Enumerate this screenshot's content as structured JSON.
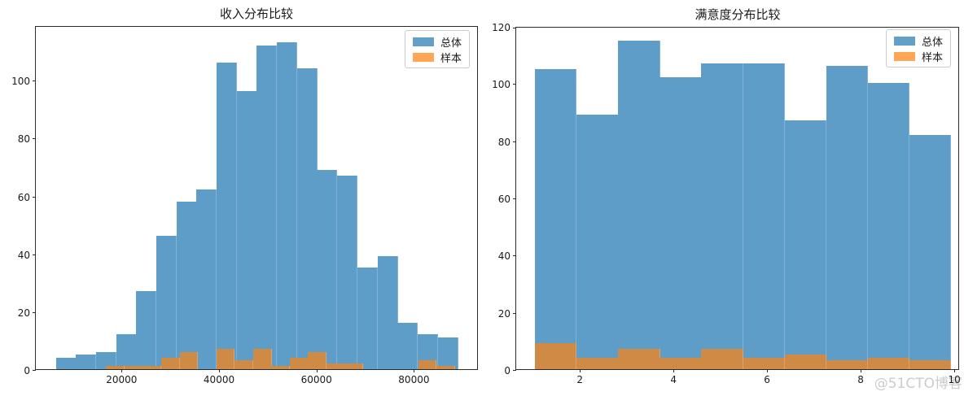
{
  "watermark": {
    "text": "@51CTO博客"
  },
  "style": {
    "frame_color": "#2b2b2b",
    "text_color": "#1a1a1a",
    "population_bar_color": "#5f9dc9",
    "sample_bar_color": "#cf8a46",
    "legend_population_color": "#62a0ca",
    "legend_sample_color": "#ffa556"
  },
  "chart_data": [
    {
      "type": "bar",
      "subtype": "histogram-overlay",
      "title": "收入分布比较",
      "xlabel": "",
      "ylabel": "",
      "grid": false,
      "legend_position": "upper right",
      "xlim": [
        2400,
        93300
      ],
      "ylim": [
        0,
        118.9
      ],
      "xticks": [
        {
          "v": 20000,
          "label": "20000"
        },
        {
          "v": 40000,
          "label": "40000"
        },
        {
          "v": 60000,
          "label": "60000"
        },
        {
          "v": 80000,
          "label": "80000"
        }
      ],
      "yticks": [
        {
          "v": 0,
          "label": "0"
        },
        {
          "v": 20,
          "label": "20"
        },
        {
          "v": 40,
          "label": "40"
        },
        {
          "v": 60,
          "label": "60"
        },
        {
          "v": 80,
          "label": "80"
        },
        {
          "v": 100,
          "label": "100"
        }
      ],
      "series": [
        {
          "name": "总体",
          "color": "#5f9dc9",
          "legend_color": "#62a0ca",
          "bin_start": 6500,
          "bin_width": 4125,
          "counts": [
            4,
            5,
            6,
            12,
            27,
            46,
            58,
            62,
            106,
            96,
            112,
            113,
            104,
            69,
            67,
            35,
            39,
            16,
            12,
            11
          ]
        },
        {
          "name": "样本",
          "color": "#cf8a46",
          "legend_color": "#ffa556",
          "bin_start": 16833,
          "bin_width": 3767,
          "counts": [
            1,
            1,
            1,
            4,
            6,
            0,
            7,
            3,
            7,
            1,
            4,
            6,
            2,
            2,
            0,
            0,
            0,
            3,
            1
          ]
        }
      ]
    },
    {
      "type": "bar",
      "subtype": "histogram-overlay",
      "title": "满意度分布比较",
      "xlabel": "",
      "ylabel": "",
      "grid": false,
      "legend_position": "upper right",
      "xlim": [
        0.64,
        10.12
      ],
      "ylim": [
        0,
        120
      ],
      "xticks": [
        {
          "v": 2,
          "label": "2"
        },
        {
          "v": 4,
          "label": "4"
        },
        {
          "v": 6,
          "label": "6"
        },
        {
          "v": 8,
          "label": "8"
        },
        {
          "v": 10,
          "label": "10"
        }
      ],
      "yticks": [
        {
          "v": 0,
          "label": "0"
        },
        {
          "v": 20,
          "label": "20"
        },
        {
          "v": 40,
          "label": "40"
        },
        {
          "v": 60,
          "label": "60"
        },
        {
          "v": 80,
          "label": "80"
        },
        {
          "v": 100,
          "label": "100"
        },
        {
          "v": 120,
          "label": "120"
        }
      ],
      "series": [
        {
          "name": "总体",
          "color": "#5f9dc9",
          "legend_color": "#62a0ca",
          "bin_start": 1.04,
          "bin_width": 0.889,
          "counts": [
            105,
            89,
            115,
            102,
            107,
            107,
            87,
            106,
            100,
            82
          ]
        },
        {
          "name": "样本",
          "color": "#cf8a46",
          "legend_color": "#ffa556",
          "bin_start": 1.04,
          "bin_width": 0.889,
          "counts": [
            9,
            4,
            7,
            4,
            7,
            4,
            5,
            3,
            4,
            3
          ]
        }
      ]
    }
  ]
}
